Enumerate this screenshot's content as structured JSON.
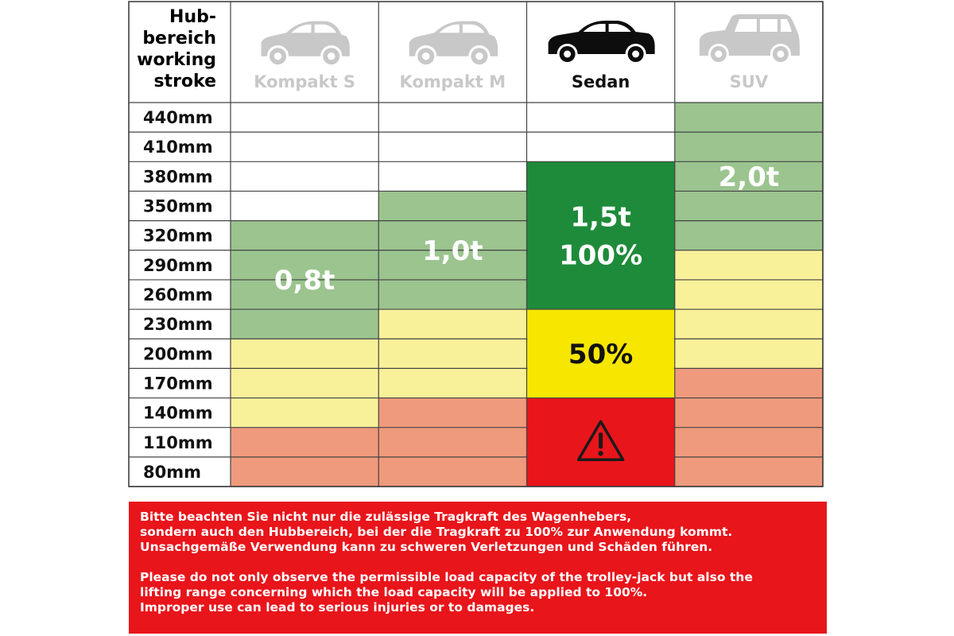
{
  "chart_data": {
    "type": "table",
    "header_label_lines": [
      "Hub-",
      "bereich",
      "working",
      "stroke"
    ],
    "categories": [
      "Kompakt S",
      "Kompakt M",
      "Sedan",
      "SUV"
    ],
    "highlighted_category": "Sedan",
    "rows": [
      "440mm",
      "410mm",
      "380mm",
      "350mm",
      "320mm",
      "290mm",
      "260mm",
      "230mm",
      "200mm",
      "170mm",
      "140mm",
      "110mm",
      "80mm"
    ],
    "colors": {
      "white": "#ffffff",
      "green": "#9bc48f",
      "dark_green": "#1e8b3a",
      "light_yellow": "#f9f09a",
      "yellow": "#f7e600",
      "salmon": "#ef9a7c",
      "red": "#e8151b"
    },
    "cells": [
      [
        "white",
        "white",
        "white",
        "green"
      ],
      [
        "white",
        "white",
        "white",
        "green"
      ],
      [
        "white",
        "white",
        "dark_green",
        "green"
      ],
      [
        "white",
        "green",
        "dark_green",
        "green"
      ],
      [
        "green",
        "green",
        "dark_green",
        "green"
      ],
      [
        "green",
        "green",
        "dark_green",
        "light_yellow"
      ],
      [
        "green",
        "green",
        "dark_green",
        "light_yellow"
      ],
      [
        "green",
        "light_yellow",
        "yellow",
        "light_yellow"
      ],
      [
        "light_yellow",
        "light_yellow",
        "yellow",
        "light_yellow"
      ],
      [
        "light_yellow",
        "light_yellow",
        "yellow",
        "salmon"
      ],
      [
        "light_yellow",
        "salmon",
        "red",
        "salmon"
      ],
      [
        "salmon",
        "salmon",
        "red",
        "salmon"
      ],
      [
        "salmon",
        "salmon",
        "red",
        "salmon"
      ]
    ],
    "annotations": [
      {
        "col": 0,
        "row_start": 4,
        "row_end": 7,
        "lines": [
          "0,8t"
        ],
        "color": "#ffffff"
      },
      {
        "col": 1,
        "row_start": 3,
        "row_end": 6,
        "lines": [
          "1,0t"
        ],
        "color": "#ffffff"
      },
      {
        "col": 2,
        "row_start": 2,
        "row_end": 6,
        "lines": [
          "1,5t",
          "100%"
        ],
        "color": "#ffffff"
      },
      {
        "col": 2,
        "row_start": 7,
        "row_end": 9,
        "lines": [
          "50%"
        ],
        "color": "#111111"
      },
      {
        "col": 3,
        "row_start": 0,
        "row_end": 4,
        "lines": [
          "2,0t"
        ],
        "color": "#ffffff"
      }
    ],
    "warning_icon": {
      "col": 2,
      "row_start": 10,
      "row_end": 12,
      "icon": "warning-triangle-icon"
    }
  },
  "notice": {
    "de_lines": [
      "Bitte beachten Sie nicht nur die zulässige Tragkraft des Wagenhebers,",
      "sondern auch den Hubbereich, bei der die Tragkraft zu 100% zur Anwendung kommt.",
      "Unsachgemäße Verwendung kann zu schweren Verletzungen und Schäden führen."
    ],
    "en_lines": [
      "Please do not only observe the permissible load capacity of the trolley-jack but also the",
      "lifting range concerning which the load capacity will be applied to 100%.",
      "Improper use can lead to serious injuries or to damages."
    ]
  }
}
